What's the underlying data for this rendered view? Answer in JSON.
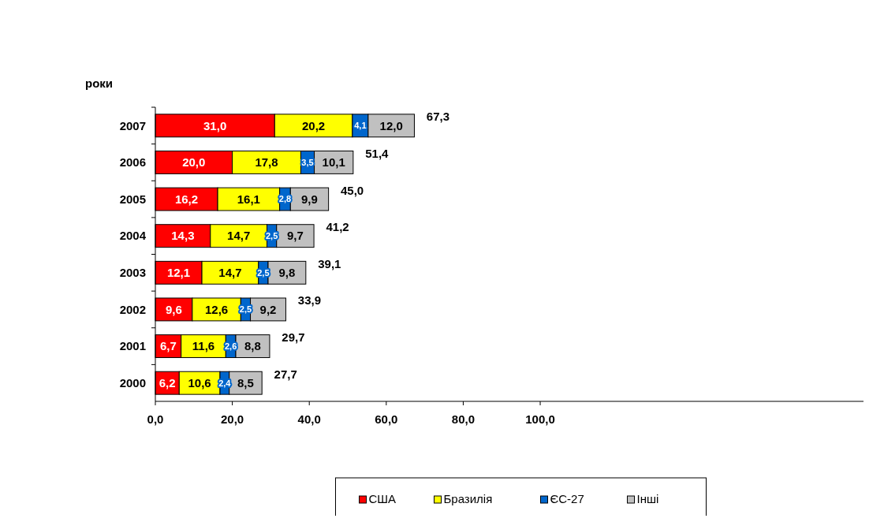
{
  "chart_data": {
    "type": "bar",
    "orientation": "horizontal",
    "stacked": true,
    "ylabel": "роки",
    "categories": [
      "2007",
      "2006",
      "2005",
      "2004",
      "2003",
      "2002",
      "2001",
      "2000"
    ],
    "series": [
      {
        "name": "США",
        "color": "#ff0000",
        "values": [
          31.0,
          20.0,
          16.2,
          14.3,
          12.1,
          9.6,
          6.7,
          6.2
        ],
        "value_labels": [
          "31,0",
          "20,0",
          "16,2",
          "14,3",
          "12,1",
          "9,6",
          "6,7",
          "6,2"
        ]
      },
      {
        "name": "Бразилія",
        "color": "#ffff00",
        "values": [
          20.2,
          17.8,
          16.1,
          14.7,
          14.7,
          12.6,
          11.6,
          10.6
        ],
        "value_labels": [
          "20,2",
          "17,8",
          "16,1",
          "14,7",
          "14,7",
          "12,6",
          "11,6",
          "10,6"
        ]
      },
      {
        "name": "ЄС-27",
        "color": "#0066cc",
        "values": [
          4.1,
          3.5,
          2.8,
          2.5,
          2.5,
          2.5,
          2.6,
          2.4
        ],
        "value_labels": [
          "4,1",
          "3,5",
          "2,8",
          "2,5",
          "2,5",
          "2,5",
          "2,6",
          "2,4"
        ]
      },
      {
        "name": "Інші",
        "color": "#c0c0c0",
        "values": [
          12.0,
          10.1,
          9.9,
          9.7,
          9.8,
          9.2,
          8.8,
          8.5
        ],
        "value_labels": [
          "12,0",
          "10,1",
          "9,9",
          "9,7",
          "9,8",
          "9,2",
          "8,8",
          "8,5"
        ]
      }
    ],
    "totals": [
      "67,3",
      "51,4",
      "45,0",
      "41,2",
      "39,1",
      "33,9",
      "29,7",
      "27,7"
    ],
    "xlim": [
      0,
      184
    ],
    "xticks": [
      {
        "value": 0,
        "label": "0,0"
      },
      {
        "value": 20,
        "label": "20,0"
      },
      {
        "value": 40,
        "label": "40,0"
      },
      {
        "value": 60,
        "label": "60,0"
      },
      {
        "value": 80,
        "label": "80,0"
      },
      {
        "value": 100,
        "label": "100,0"
      }
    ],
    "legend": "bottom"
  }
}
